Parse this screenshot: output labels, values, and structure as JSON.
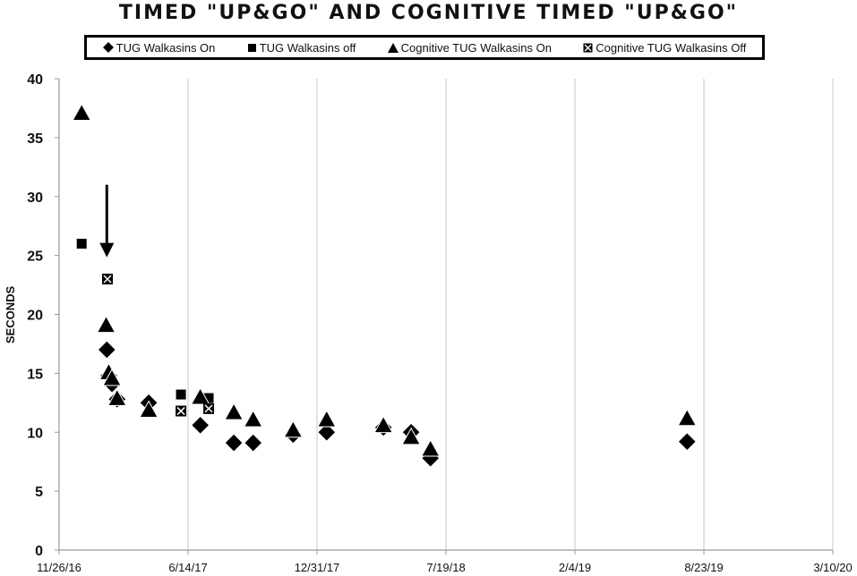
{
  "chart_data": {
    "type": "scatter",
    "title": "TIMED \"UP&GO\" AND COGNITIVE TIMED \"UP&GO\"",
    "xlabel": "",
    "ylabel": "SECONDS",
    "x_axis_type": "date",
    "xlim": [
      "2016-11-26",
      "2020-03-10"
    ],
    "ylim": [
      0,
      40
    ],
    "y_ticks": [
      0,
      5,
      10,
      15,
      20,
      25,
      30,
      35,
      40
    ],
    "x_ticks": [
      "2016-11-26",
      "2017-06-14",
      "2017-12-31",
      "2018-07-19",
      "2019-02-04",
      "2019-08-23",
      "2020-03-10"
    ],
    "x_tick_labels": [
      "11/26/16",
      "6/14/17",
      "12/31/17",
      "7/19/18",
      "2/4/19",
      "8/23/19",
      "3/10/20"
    ],
    "grid": "vertical",
    "legend_position": "top",
    "annotations": [
      {
        "type": "arrow",
        "x": "2017-02-08",
        "y_from": 31,
        "y_to": 25,
        "direction": "down"
      }
    ],
    "series": [
      {
        "name": "TUG Walkasins On",
        "marker": "diamond",
        "points": [
          {
            "x": "2017-02-08",
            "y": 17.0
          },
          {
            "x": "2017-02-11",
            "y": 14.8
          },
          {
            "x": "2017-02-16",
            "y": 14.1
          },
          {
            "x": "2017-02-24",
            "y": 12.8
          },
          {
            "x": "2017-04-14",
            "y": 12.5
          },
          {
            "x": "2017-07-03",
            "y": 10.6
          },
          {
            "x": "2017-08-24",
            "y": 9.1
          },
          {
            "x": "2017-09-23",
            "y": 9.1
          },
          {
            "x": "2017-11-24",
            "y": 9.8
          },
          {
            "x": "2018-01-15",
            "y": 10.0
          },
          {
            "x": "2018-04-13",
            "y": 10.4
          },
          {
            "x": "2018-05-26",
            "y": 10.0
          },
          {
            "x": "2018-06-25",
            "y": 7.8
          },
          {
            "x": "2019-07-28",
            "y": 9.2
          }
        ]
      },
      {
        "name": "TUG Walkasins off",
        "marker": "square",
        "points": [
          {
            "x": "2016-12-31",
            "y": 26.0
          },
          {
            "x": "2017-06-03",
            "y": 13.2
          },
          {
            "x": "2017-07-16",
            "y": 12.9
          }
        ]
      },
      {
        "name": "Cognitive TUG Walkasins On",
        "marker": "triangle",
        "points": [
          {
            "x": "2016-12-31",
            "y": 37.0
          },
          {
            "x": "2017-02-07",
            "y": 19.0
          },
          {
            "x": "2017-02-11",
            "y": 15.0
          },
          {
            "x": "2017-02-16",
            "y": 14.5
          },
          {
            "x": "2017-02-24",
            "y": 12.8
          },
          {
            "x": "2017-04-14",
            "y": 11.8
          },
          {
            "x": "2017-07-03",
            "y": 12.9
          },
          {
            "x": "2017-08-24",
            "y": 11.6
          },
          {
            "x": "2017-09-23",
            "y": 11.0
          },
          {
            "x": "2017-11-24",
            "y": 10.1
          },
          {
            "x": "2018-01-15",
            "y": 11.0
          },
          {
            "x": "2018-04-13",
            "y": 10.5
          },
          {
            "x": "2018-05-26",
            "y": 9.5
          },
          {
            "x": "2018-06-25",
            "y": 8.5
          },
          {
            "x": "2019-07-28",
            "y": 11.1
          }
        ]
      },
      {
        "name": "Cognitive TUG Walkasins Off",
        "marker": "boxed-x",
        "points": [
          {
            "x": "2017-02-09",
            "y": 23.0
          },
          {
            "x": "2017-06-03",
            "y": 11.8
          },
          {
            "x": "2017-07-16",
            "y": 12.0
          }
        ]
      }
    ]
  }
}
